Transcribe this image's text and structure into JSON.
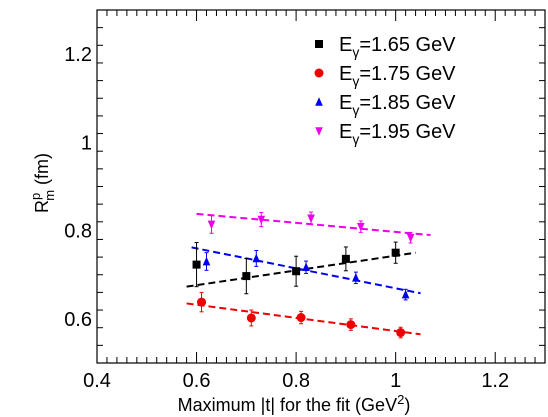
{
  "chart_data": {
    "type": "scatter",
    "xlabel": "Maximum |t| for the fit (GeV",
    "xlabel_sup": "2",
    "xlabel_close": ")",
    "ylabel_main": "R",
    "ylabel_sup": "p",
    "ylabel_sub": "m",
    "ylabel_unit": " (fm)",
    "xlim": [
      0.4,
      1.3
    ],
    "ylim": [
      0.5,
      1.3
    ],
    "xticks": [
      {
        "value": 0.4,
        "label": "0.4"
      },
      {
        "value": 0.6,
        "label": "0.6"
      },
      {
        "value": 0.8,
        "label": "0.8"
      },
      {
        "value": 1.0,
        "label": "1"
      },
      {
        "value": 1.2,
        "label": "1.2"
      }
    ],
    "yticks": [
      {
        "value": 0.6,
        "label": "0.6"
      },
      {
        "value": 0.8,
        "label": "0.8"
      },
      {
        "value": 1.0,
        "label": "1"
      },
      {
        "value": 1.2,
        "label": "1.2"
      }
    ],
    "legend_position": "top-right",
    "series": [
      {
        "name": "1.65 GeV",
        "color": "#000000",
        "marker": "square",
        "points": [
          {
            "x": 0.6,
            "y": 0.723,
            "err": 0.05
          },
          {
            "x": 0.7,
            "y": 0.697,
            "err": 0.04
          },
          {
            "x": 0.8,
            "y": 0.708,
            "err": 0.034
          },
          {
            "x": 0.9,
            "y": 0.736,
            "err": 0.027
          },
          {
            "x": 1.0,
            "y": 0.75,
            "err": 0.024
          }
        ],
        "fit": {
          "x": [
            0.58,
            1.04
          ],
          "y": [
            0.673,
            0.75
          ]
        }
      },
      {
        "name": "1.75 GeV",
        "color": "#ee0000",
        "marker": "circle",
        "points": [
          {
            "x": 0.61,
            "y": 0.638,
            "err": 0.022
          },
          {
            "x": 0.71,
            "y": 0.602,
            "err": 0.018
          },
          {
            "x": 0.81,
            "y": 0.603,
            "err": 0.014
          },
          {
            "x": 0.91,
            "y": 0.587,
            "err": 0.013
          },
          {
            "x": 1.01,
            "y": 0.569,
            "err": 0.012
          }
        ],
        "fit": {
          "x": [
            0.58,
            1.05
          ],
          "y": [
            0.635,
            0.565
          ]
        }
      },
      {
        "name": "1.85 GeV",
        "color": "#0000ee",
        "marker": "triangle-up",
        "points": [
          {
            "x": 0.62,
            "y": 0.73,
            "err": 0.02
          },
          {
            "x": 0.72,
            "y": 0.737,
            "err": 0.018
          },
          {
            "x": 0.82,
            "y": 0.717,
            "err": 0.014
          },
          {
            "x": 0.92,
            "y": 0.693,
            "err": 0.013
          },
          {
            "x": 1.02,
            "y": 0.655,
            "err": 0.012
          }
        ],
        "fit": {
          "x": [
            0.59,
            1.05
          ],
          "y": [
            0.762,
            0.658
          ]
        }
      },
      {
        "name": "1.95 GeV",
        "color": "#ee00ee",
        "marker": "triangle-down",
        "points": [
          {
            "x": 0.63,
            "y": 0.814,
            "err": 0.02
          },
          {
            "x": 0.73,
            "y": 0.825,
            "err": 0.016
          },
          {
            "x": 0.83,
            "y": 0.828,
            "err": 0.014
          },
          {
            "x": 0.93,
            "y": 0.809,
            "err": 0.013
          },
          {
            "x": 1.03,
            "y": 0.784,
            "err": 0.012
          }
        ],
        "fit": {
          "x": [
            0.6,
            1.07
          ],
          "y": [
            0.838,
            0.79
          ]
        }
      }
    ],
    "legend_prefix": "E",
    "legend_prefix_sub": "γ"
  }
}
